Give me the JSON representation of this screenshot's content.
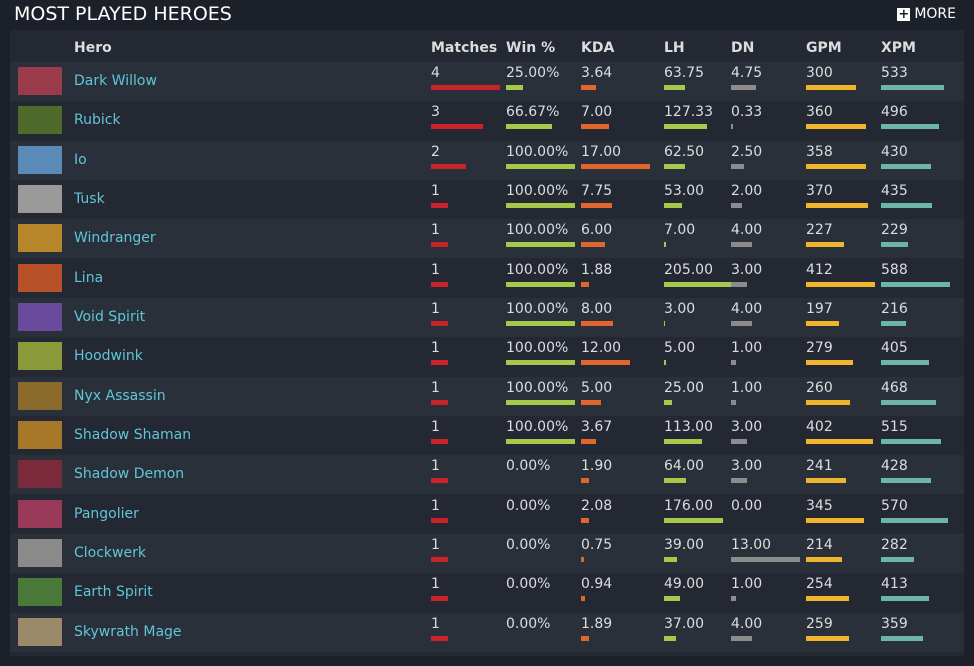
{
  "header": {
    "title": "MOST PLAYED HEROES",
    "more": "MORE"
  },
  "table": {
    "columns": [
      "Hero",
      "Matches",
      "Win %",
      "KDA",
      "LH",
      "DN",
      "GPM",
      "XPM"
    ],
    "rows": [
      [
        "Dark Willow",
        "4",
        "25.00%",
        "3.64",
        "63.75",
        "4.75",
        "300",
        "533"
      ],
      [
        "Rubick",
        "3",
        "66.67%",
        "7.00",
        "127.33",
        "0.33",
        "360",
        "496"
      ],
      [
        "Io",
        "2",
        "100.00%",
        "17.00",
        "62.50",
        "2.50",
        "358",
        "430"
      ],
      [
        "Tusk",
        "1",
        "100.00%",
        "7.75",
        "53.00",
        "2.00",
        "370",
        "435"
      ],
      [
        "Windranger",
        "1",
        "100.00%",
        "6.00",
        "7.00",
        "4.00",
        "227",
        "229"
      ],
      [
        "Lina",
        "1",
        "100.00%",
        "1.88",
        "205.00",
        "3.00",
        "412",
        "588"
      ],
      [
        "Void Spirit",
        "1",
        "100.00%",
        "8.00",
        "3.00",
        "4.00",
        "197",
        "216"
      ],
      [
        "Hoodwink",
        "1",
        "100.00%",
        "12.00",
        "5.00",
        "1.00",
        "279",
        "405"
      ],
      [
        "Nyx Assassin",
        "1",
        "100.00%",
        "5.00",
        "25.00",
        "1.00",
        "260",
        "468"
      ],
      [
        "Shadow Shaman",
        "1",
        "100.00%",
        "3.67",
        "113.00",
        "3.00",
        "402",
        "515"
      ],
      [
        "Shadow Demon",
        "1",
        "0.00%",
        "1.90",
        "64.00",
        "3.00",
        "241",
        "428"
      ],
      [
        "Pangolier",
        "1",
        "0.00%",
        "2.08",
        "176.00",
        "0.00",
        "345",
        "570"
      ],
      [
        "Clockwerk",
        "1",
        "0.00%",
        "0.75",
        "39.00",
        "13.00",
        "214",
        "282"
      ],
      [
        "Earth Spirit",
        "1",
        "0.00%",
        "0.94",
        "49.00",
        "1.00",
        "254",
        "413"
      ],
      [
        "Skywrath Mage",
        "1",
        "0.00%",
        "1.89",
        "37.00",
        "4.00",
        "259",
        "359"
      ]
    ]
  }
}
